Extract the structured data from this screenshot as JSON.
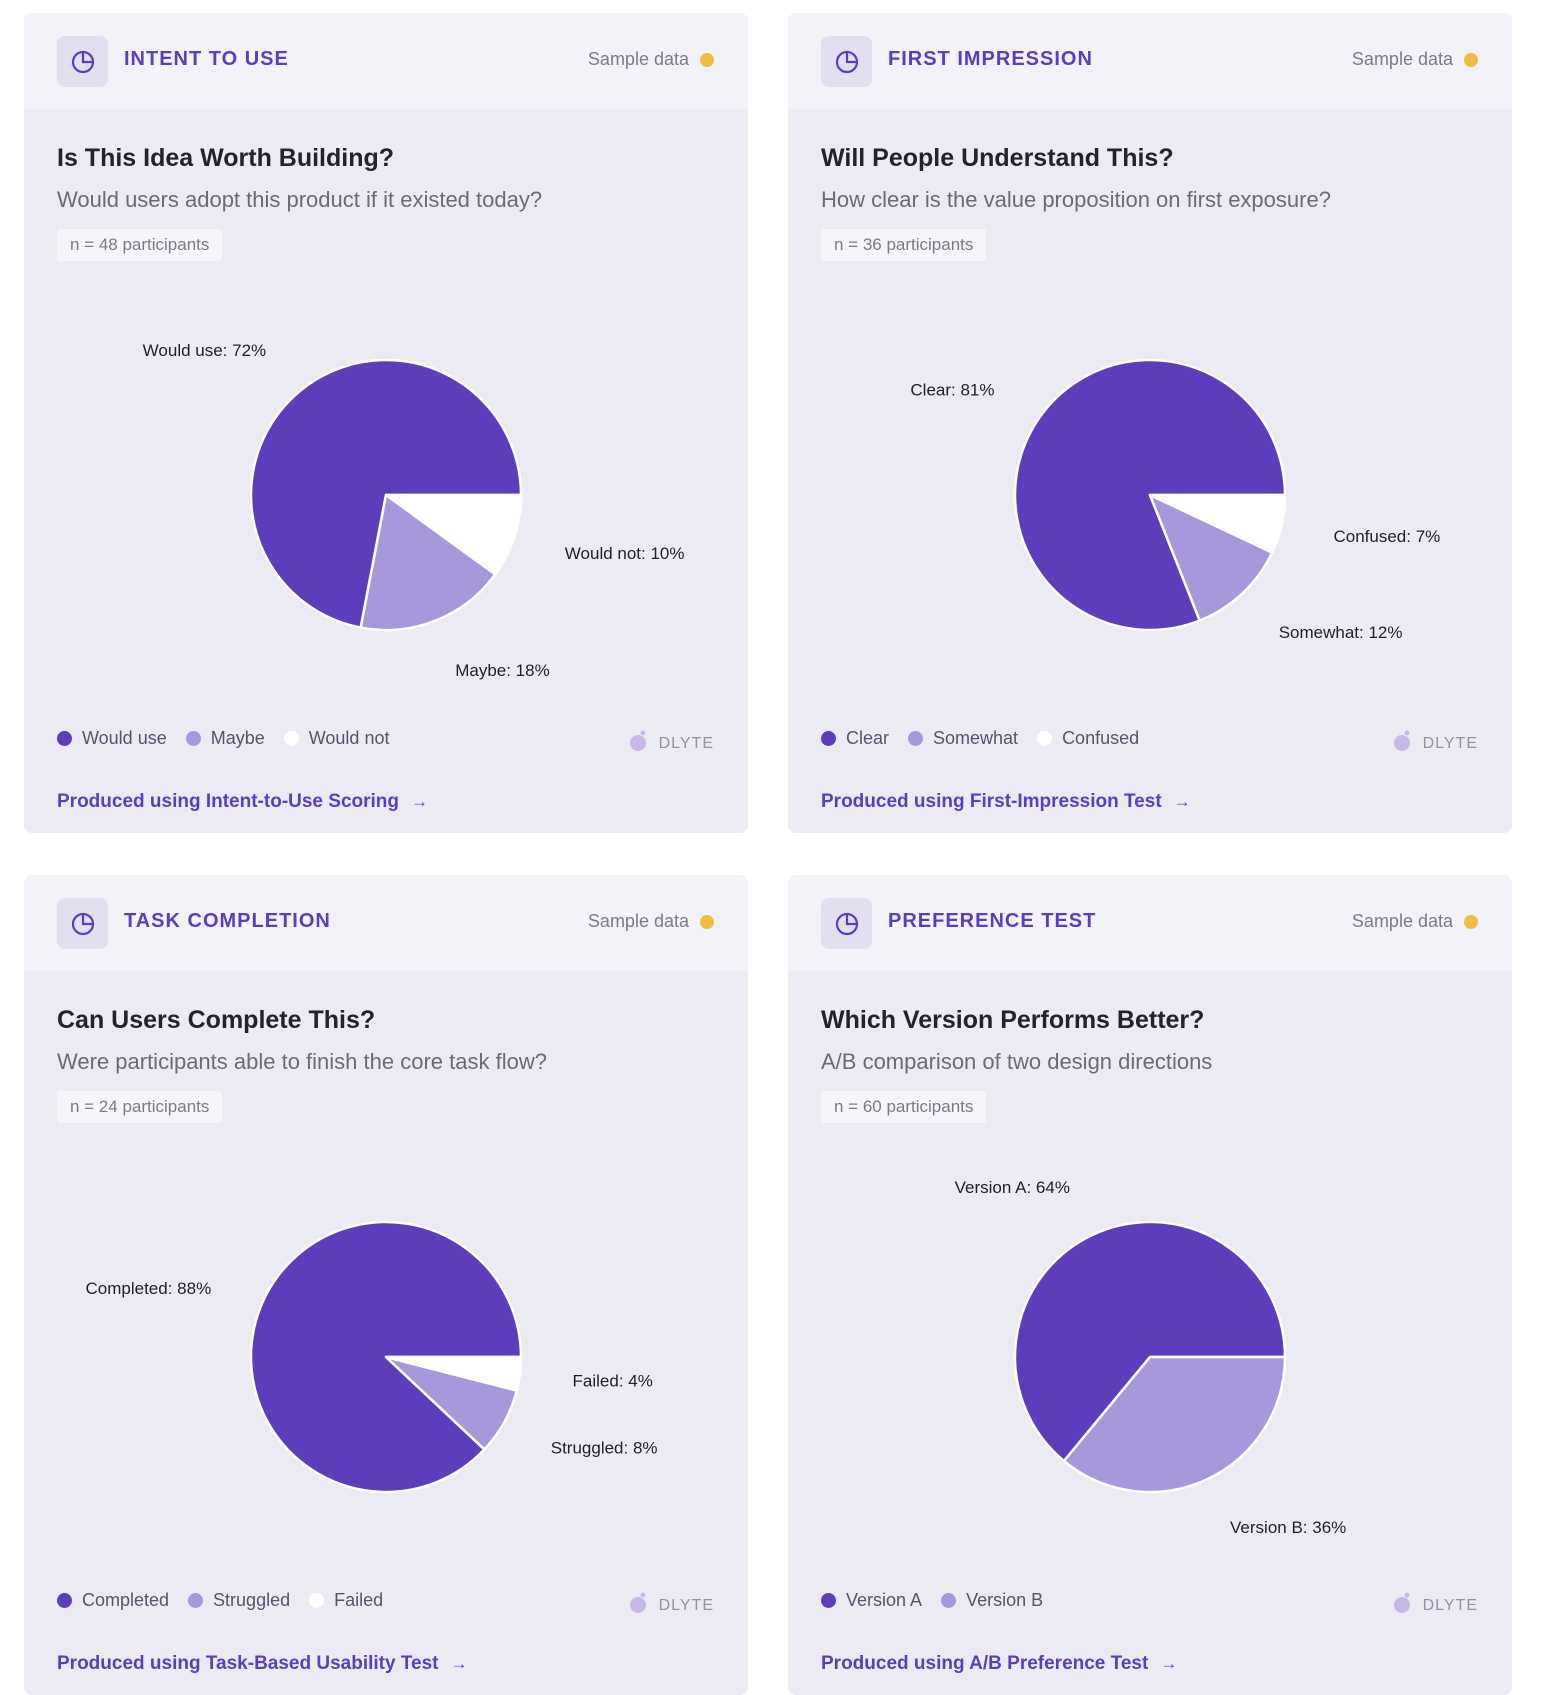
{
  "cards": [
    {
      "category": "INTENT TO USE",
      "sample_label": "Sample data",
      "title": "Is This Idea Worth Building?",
      "subtitle": "Would users adopt this product if it existed today?",
      "n_label": "n = 48 participants",
      "brand": "DLYTE",
      "produced_label": "Produced using Intent-to-Use Scoring",
      "legend": [
        "Would use",
        "Maybe",
        "Would not"
      ]
    },
    {
      "category": "FIRST IMPRESSION",
      "sample_label": "Sample data",
      "title": "Will People Understand This?",
      "subtitle": "How clear is the value proposition on first exposure?",
      "n_label": "n = 36 participants",
      "brand": "DLYTE",
      "produced_label": "Produced using First-Impression Test",
      "legend": [
        "Clear",
        "Somewhat",
        "Confused"
      ]
    },
    {
      "category": "TASK COMPLETION",
      "sample_label": "Sample data",
      "title": "Can Users Complete This?",
      "subtitle": "Were participants able to finish the core task flow?",
      "n_label": "n = 24 participants",
      "brand": "DLYTE",
      "produced_label": "Produced using Task-Based Usability Test",
      "legend": [
        "Completed",
        "Struggled",
        "Failed"
      ]
    },
    {
      "category": "PREFERENCE TEST",
      "sample_label": "Sample data",
      "title": "Which Version Performs Better?",
      "subtitle": "A/B comparison of two design directions",
      "n_label": "n = 60 participants",
      "brand": "DLYTE",
      "produced_label": "Produced using A/B Preference Test",
      "legend": [
        "Version A",
        "Version B"
      ]
    }
  ],
  "colors": {
    "primary": "#5e3dbd",
    "secondary": "#a797db",
    "tertiary": "#ffffff",
    "accent_text": "#5b3dbd",
    "sample_dot": "#f1bd40"
  },
  "icons": {
    "header": "pie-chart-icon",
    "produced": "arrow-right-icon",
    "brand": "dlyte-logo-icon"
  },
  "chart_data": [
    {
      "type": "pie",
      "labels": [
        "Would use",
        "Maybe",
        "Would not"
      ],
      "values": [
        72,
        18,
        10
      ],
      "slice_labels": [
        "Would use: 72%",
        "Maybe: 18%",
        "Would not: 10%"
      ],
      "colors": [
        "#5e3dbd",
        "#a797db",
        "#ffffff"
      ]
    },
    {
      "type": "pie",
      "labels": [
        "Clear",
        "Somewhat",
        "Confused"
      ],
      "values": [
        81,
        12,
        7
      ],
      "slice_labels": [
        "Clear: 81%",
        "Somewhat: 12%",
        "Confused: 7%"
      ],
      "colors": [
        "#5e3dbd",
        "#a797db",
        "#ffffff"
      ]
    },
    {
      "type": "pie",
      "labels": [
        "Completed",
        "Struggled",
        "Failed"
      ],
      "values": [
        88,
        8,
        4
      ],
      "slice_labels": [
        "Completed: 88%",
        "Struggled: 8%",
        "Failed: 4%"
      ],
      "colors": [
        "#5e3dbd",
        "#a797db",
        "#ffffff"
      ]
    },
    {
      "type": "pie",
      "labels": [
        "Version A",
        "Version B"
      ],
      "values": [
        64,
        36
      ],
      "slice_labels": [
        "Version A: 64%",
        "Version B: 36%"
      ],
      "colors": [
        "#5e3dbd",
        "#a797db"
      ]
    }
  ]
}
